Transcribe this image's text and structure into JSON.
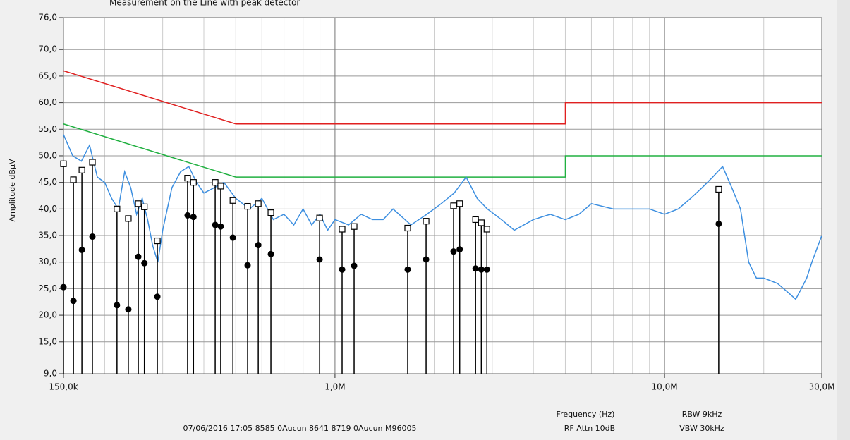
{
  "chart_data": {
    "type": "line",
    "title": "Measurement on the Line with peak detector",
    "ylabel": "Amplitude dBµV",
    "xlabel": "Frequency (Hz)",
    "footer": [
      "07/06/2016  17:05  8585  0Aucun  8641  8719  0Aucun  M96005",
      "RF Attn 10dB",
      "RBW 9kHz",
      "VBW 30kHz"
    ],
    "xscale": "log",
    "grid": true,
    "xlim": [
      150000,
      30000000
    ],
    "xticks": [
      {
        "value": 150000,
        "label": "150,0k"
      },
      {
        "value": 1000000,
        "label": "1,0M"
      },
      {
        "value": 10000000,
        "label": "10,0M"
      },
      {
        "value": 30000000,
        "label": "30,0M"
      }
    ],
    "x_minor_grid": [
      200000,
      300000,
      400000,
      500000,
      600000,
      700000,
      800000,
      900000,
      2000000,
      3000000,
      4000000,
      5000000,
      6000000,
      7000000,
      8000000,
      9000000,
      20000000
    ],
    "ylim": [
      9,
      76
    ],
    "yticks": [
      {
        "value": 9,
        "label": "9,0"
      },
      {
        "value": 15,
        "label": "15,0"
      },
      {
        "value": 20,
        "label": "20,0"
      },
      {
        "value": 25,
        "label": "25,0"
      },
      {
        "value": 30,
        "label": "30,0"
      },
      {
        "value": 35,
        "label": "35,0"
      },
      {
        "value": 40,
        "label": "40,0"
      },
      {
        "value": 45,
        "label": "45,0"
      },
      {
        "value": 50,
        "label": "50,0"
      },
      {
        "value": 55,
        "label": "55,0"
      },
      {
        "value": 60,
        "label": "60,0"
      },
      {
        "value": 65,
        "label": "65,0"
      },
      {
        "value": 70,
        "label": "70,0"
      },
      {
        "value": 76,
        "label": "76,0"
      }
    ],
    "series": [
      {
        "color": "#e02020",
        "x": [
          150000,
          500000,
          5000000,
          5000000,
          30000000
        ],
        "values": [
          66,
          56,
          56,
          60,
          60
        ]
      },
      {
        "color": "#20b040",
        "x": [
          150000,
          500000,
          5000000,
          5000000,
          30000000
        ],
        "values": [
          56,
          46,
          46,
          50,
          50
        ]
      },
      {
        "color": "#3d8fe0",
        "x": [
          150000,
          160000,
          170000,
          180000,
          190000,
          200000,
          210000,
          220000,
          230000,
          240000,
          250000,
          260000,
          270000,
          280000,
          290000,
          300000,
          320000,
          340000,
          360000,
          380000,
          400000,
          430000,
          460000,
          500000,
          550000,
          600000,
          650000,
          700000,
          750000,
          800000,
          850000,
          900000,
          950000,
          1000000,
          1100000,
          1200000,
          1300000,
          1400000,
          1500000,
          1700000,
          1900000,
          2100000,
          2300000,
          2500000,
          2700000,
          2900000,
          3200000,
          3500000,
          4000000,
          4500000,
          5000000,
          5500000,
          6000000,
          7000000,
          8000000,
          9000000,
          10000000,
          11000000,
          12000000,
          13000000,
          14000000,
          15000000,
          16000000,
          17000000,
          18000000,
          19000000,
          20000000,
          22000000,
          24000000,
          25000000,
          26000000,
          27000000,
          28000000,
          30000000
        ],
        "values": [
          54,
          50,
          49,
          52,
          46,
          45,
          42,
          40,
          47,
          44,
          39,
          42,
          38,
          33,
          30,
          36,
          44,
          47,
          48,
          45,
          43,
          44,
          45,
          42,
          40,
          42,
          38,
          39,
          37,
          40,
          37,
          39,
          36,
          38,
          37,
          39,
          38,
          38,
          40,
          37,
          39,
          41,
          43,
          46,
          42,
          40,
          38,
          36,
          38,
          39,
          38,
          39,
          41,
          40,
          40,
          40,
          39,
          40,
          42,
          44,
          46,
          48,
          44,
          40,
          30,
          27,
          27,
          26,
          24,
          23,
          25,
          27,
          30,
          35
        ]
      }
    ],
    "markers": {
      "x": [
        150000,
        160800,
        170600,
        183600,
        218000,
        236000,
        253000,
        264000,
        289000,
        357000,
        372000,
        433000,
        450000,
        490000,
        543000,
        585000,
        639000,
        898000,
        1051000,
        1143000,
        1662000,
        1890000,
        2290000,
        2390000,
        2670000,
        2780000,
        2890000,
        14600000
      ],
      "peak": [
        48.5,
        45.5,
        47.3,
        48.8,
        40,
        38.2,
        41,
        40.4,
        34,
        45.8,
        45,
        45,
        44.3,
        41.6,
        40.5,
        41,
        39.3,
        38.3,
        36.2,
        36.7,
        36.4,
        37.7,
        40.6,
        41,
        38,
        37.4,
        36.2,
        43.7
      ],
      "average": [
        25.3,
        22.7,
        32.3,
        34.8,
        21.9,
        21.1,
        31,
        29.8,
        23.5,
        38.8,
        38.5,
        37,
        36.7,
        34.6,
        29.4,
        33.2,
        31.5,
        30.5,
        28.6,
        29.3,
        28.6,
        30.5,
        32,
        32.4,
        28.8,
        28.6,
        28.6,
        37.2
      ]
    }
  }
}
